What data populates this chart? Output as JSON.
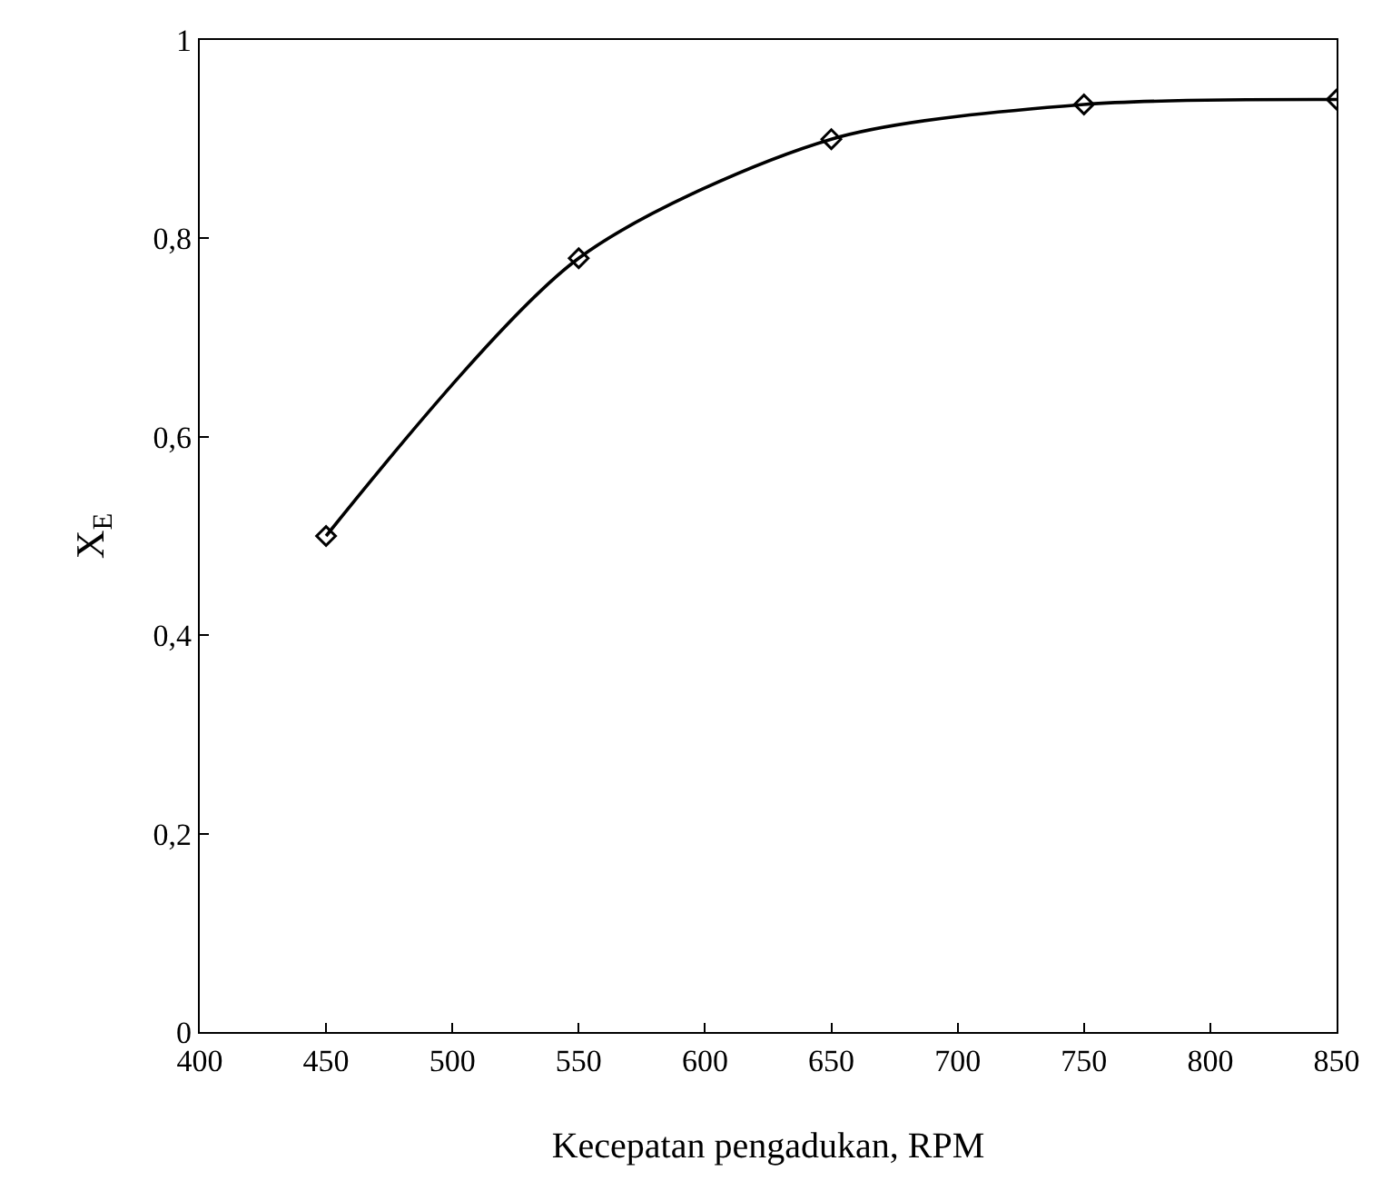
{
  "chart_data": {
    "type": "line",
    "xlabel": "Kecepatan pengadukan, RPM",
    "ylabel": "X$_{E}$",
    "x": [
      450,
      550,
      650,
      750,
      850
    ],
    "series": [
      {
        "color": "#000000",
        "values": [
          0.5,
          0.78,
          0.9,
          0.935,
          0.94
        ]
      }
    ],
    "xlim": [
      400,
      850
    ],
    "xticks": [
      400,
      450,
      500,
      550,
      600,
      650,
      700,
      750,
      800,
      850
    ],
    "ylim": [
      0,
      1
    ],
    "yticks": [
      0,
      {
        "value": 0.2,
        "label": "0,2"
      },
      {
        "value": 0.4,
        "label": "0,4"
      },
      {
        "value": 0.6,
        "label": "0,6"
      },
      {
        "value": 0.8,
        "label": "0,8"
      },
      1
    ],
    "marker": "diamond",
    "line_style": "solid"
  }
}
